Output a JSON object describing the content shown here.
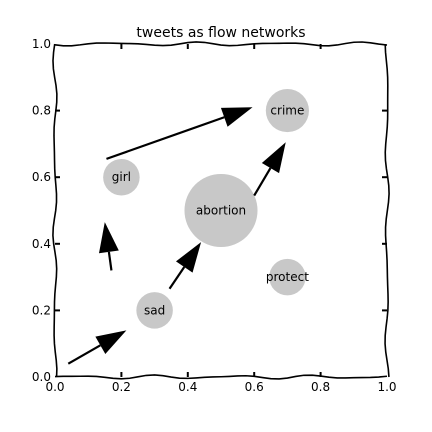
{
  "chart_data": {
    "type": "scatter",
    "title": "tweets as flow networks",
    "xlabel": "",
    "ylabel": "",
    "xlim": [
      0.0,
      1.0
    ],
    "ylim": [
      0.0,
      1.0
    ],
    "xticks": [
      "0.0",
      "0.2",
      "0.4",
      "0.6",
      "0.8",
      "1.0"
    ],
    "yticks": [
      "0.0",
      "0.2",
      "0.4",
      "0.6",
      "0.8",
      "1.0"
    ],
    "grid": false,
    "style": "xkcd hand-drawn",
    "colors": {
      "node_fill": "#c8c8c8",
      "arrow": "#000000",
      "frame": "#000000"
    },
    "nodes": [
      {
        "label": "girl",
        "x": 0.2,
        "y": 0.6,
        "size": 0.055
      },
      {
        "label": "crime",
        "x": 0.7,
        "y": 0.8,
        "size": 0.065
      },
      {
        "label": "abortion",
        "x": 0.5,
        "y": 0.5,
        "size": 0.11
      },
      {
        "label": "protect",
        "x": 0.7,
        "y": 0.3,
        "size": 0.055
      },
      {
        "label": "sad",
        "x": 0.3,
        "y": 0.2,
        "size": 0.055
      }
    ],
    "arrows": [
      {
        "from": [
          0.04,
          0.04
        ],
        "to": [
          0.215,
          0.14
        ]
      },
      {
        "from": [
          0.345,
          0.265
        ],
        "to": [
          0.44,
          0.405
        ]
      },
      {
        "from": [
          0.17,
          0.32
        ],
        "to": [
          0.15,
          0.465
        ]
      },
      {
        "from": [
          0.155,
          0.655
        ],
        "to": [
          0.595,
          0.81
        ]
      },
      {
        "from": [
          0.6,
          0.545
        ],
        "to": [
          0.695,
          0.705
        ]
      }
    ]
  }
}
